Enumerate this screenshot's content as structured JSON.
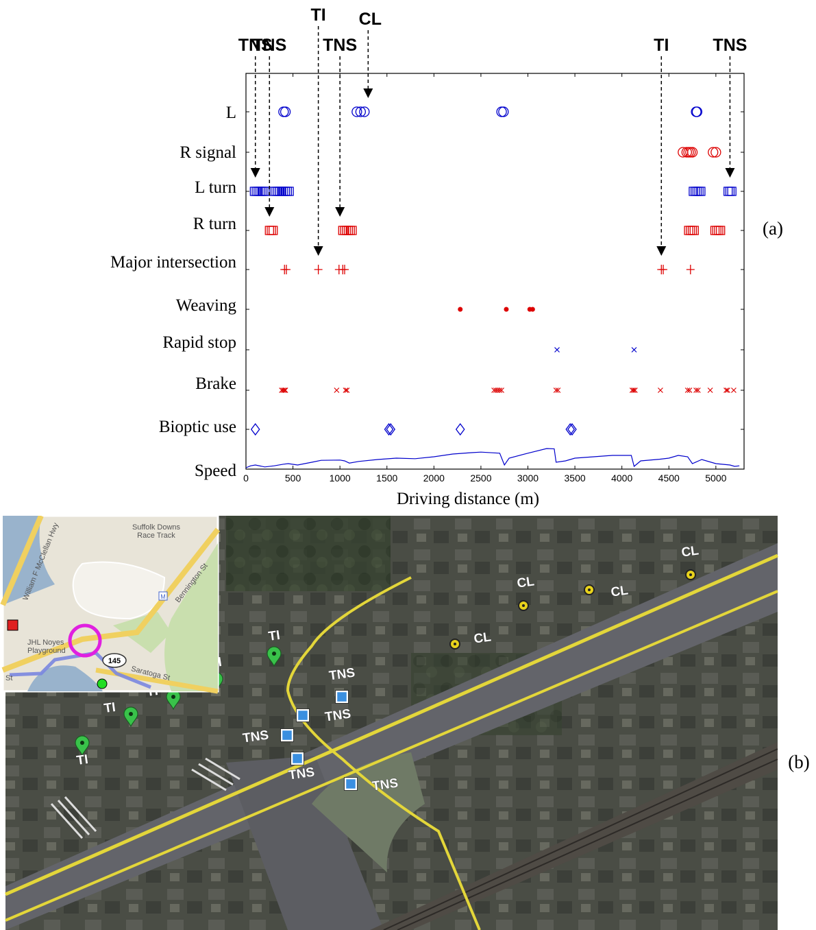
{
  "panel_labels": {
    "a": "(a)",
    "b": "(b)"
  },
  "chart_data": {
    "type": "scatter",
    "xlabel": "Driving distance (m)",
    "xlim": [
      0,
      5300
    ],
    "xticks": [
      0,
      500,
      1000,
      1500,
      2000,
      2500,
      3000,
      3500,
      4000,
      4500,
      5000
    ],
    "rows": [
      {
        "name": "L",
        "color": "#0000cc",
        "marker": "circle",
        "x": [
          400,
          420,
          1180,
          1220,
          1260,
          2720,
          2740,
          4790,
          4800
        ]
      },
      {
        "name": "R signal",
        "color": "#dd0000",
        "marker": "circle",
        "x": [
          4650,
          4690,
          4710,
          4730,
          4750,
          4970,
          5000
        ]
      },
      {
        "name": "L turn",
        "color": "#0000cc",
        "marker": "square",
        "x": [
          90,
          110,
          130,
          150,
          170,
          190,
          210,
          300,
          320,
          340,
          360,
          380,
          400,
          420,
          440,
          460,
          4760,
          4780,
          4800,
          4820,
          4840,
          5130,
          5150,
          5170
        ]
      },
      {
        "name": "R turn",
        "color": "#dd0000",
        "marker": "square",
        "x": [
          250,
          270,
          290,
          1030,
          1050,
          1070,
          1090,
          1110,
          1130,
          4710,
          4730,
          4750,
          4770,
          4990,
          5010,
          5030,
          5050
        ]
      },
      {
        "name": "Major intersection",
        "color": "#dd0000",
        "marker": "plus",
        "x": [
          410,
          430,
          770,
          990,
          1030,
          1050,
          4420,
          4440,
          4730
        ]
      },
      {
        "name": "Weaving",
        "color": "#dd0000",
        "marker": "dot",
        "x": [
          2280,
          2770,
          3020,
          3050
        ]
      },
      {
        "name": "Rapid stop",
        "color": "#0000cc",
        "marker": "x",
        "x": [
          3310,
          4130
        ]
      },
      {
        "name": "Brake",
        "color": "#dd0000",
        "marker": "x",
        "x": [
          380,
          395,
          410,
          420,
          965,
          1060,
          1075,
          2640,
          2660,
          2680,
          2700,
          2720,
          3300,
          3320,
          4110,
          4125,
          4140,
          4410,
          4700,
          4720,
          4790,
          4810,
          4940,
          5110,
          5125,
          5190
        ]
      },
      {
        "name": "Bioptic use",
        "color": "#0000cc",
        "marker": "diamond",
        "x": [
          100,
          1520,
          1540,
          2280,
          3450,
          3470
        ]
      },
      {
        "name": "Speed",
        "color": "#0000cc",
        "marker": "line",
        "x": [],
        "speed": [
          [
            0,
            0.05
          ],
          [
            50,
            0.12
          ],
          [
            100,
            0.15
          ],
          [
            200,
            0.08
          ],
          [
            300,
            0.12
          ],
          [
            400,
            0.18
          ],
          [
            450,
            0.2
          ],
          [
            550,
            0.15
          ],
          [
            700,
            0.25
          ],
          [
            800,
            0.32
          ],
          [
            1000,
            0.33
          ],
          [
            1050,
            0.3
          ],
          [
            1100,
            0.22
          ],
          [
            1200,
            0.28
          ],
          [
            1400,
            0.35
          ],
          [
            1600,
            0.4
          ],
          [
            1800,
            0.38
          ],
          [
            2000,
            0.45
          ],
          [
            2200,
            0.55
          ],
          [
            2400,
            0.6
          ],
          [
            2500,
            0.62
          ],
          [
            2700,
            0.58
          ],
          [
            2750,
            0.15
          ],
          [
            2800,
            0.4
          ],
          [
            3000,
            0.58
          ],
          [
            3200,
            0.75
          ],
          [
            3280,
            0.74
          ],
          [
            3300,
            0.25
          ],
          [
            3400,
            0.3
          ],
          [
            3500,
            0.4
          ],
          [
            3700,
            0.45
          ],
          [
            3900,
            0.5
          ],
          [
            4100,
            0.5
          ],
          [
            4130,
            0.1
          ],
          [
            4200,
            0.3
          ],
          [
            4400,
            0.36
          ],
          [
            4500,
            0.4
          ],
          [
            4600,
            0.5
          ],
          [
            4700,
            0.45
          ],
          [
            4750,
            0.2
          ],
          [
            4850,
            0.35
          ],
          [
            5000,
            0.2
          ],
          [
            5150,
            0.15
          ],
          [
            5200,
            0.1
          ],
          [
            5250,
            0.12
          ]
        ]
      }
    ],
    "annotations": [
      {
        "text": "TNS",
        "x": 100,
        "row": "L turn"
      },
      {
        "text": "TNS",
        "x": 250,
        "row": "R turn"
      },
      {
        "text": "TI",
        "x": 770,
        "row": "Major intersection"
      },
      {
        "text": "TNS",
        "x": 1000,
        "row": "R turn"
      },
      {
        "text": "CL",
        "x": 1300,
        "row": "L"
      },
      {
        "text": "TI",
        "x": 4420,
        "row": "Major intersection"
      },
      {
        "text": "TNS",
        "x": 5150,
        "row": "L turn"
      }
    ]
  },
  "inset_map": {
    "labels": [
      "Suffolk Downs",
      "Race Track",
      "William F McClellan Hwy",
      "Bennington St",
      "JHL Noyes",
      "Playground",
      "Saratoga St",
      "St"
    ],
    "route_shield": "145",
    "transit_icon": "M"
  },
  "photo_markers": [
    {
      "text": "CL",
      "kind": "CL"
    },
    {
      "text": "CL",
      "kind": "CL"
    },
    {
      "text": "CL",
      "kind": "CL"
    },
    {
      "text": "CL",
      "kind": "CL"
    },
    {
      "text": "TI",
      "kind": "TI"
    },
    {
      "text": "TI",
      "kind": "TI"
    },
    {
      "text": "TI",
      "kind": "TI"
    },
    {
      "text": "TI",
      "kind": "TI"
    },
    {
      "text": "TI",
      "kind": "TI"
    },
    {
      "text": "TNS",
      "kind": "TNS"
    },
    {
      "text": "TNS",
      "kind": "TNS"
    },
    {
      "text": "TNS",
      "kind": "TNS"
    },
    {
      "text": "TNS",
      "kind": "TNS"
    },
    {
      "text": "TNS",
      "kind": "TNS"
    }
  ]
}
